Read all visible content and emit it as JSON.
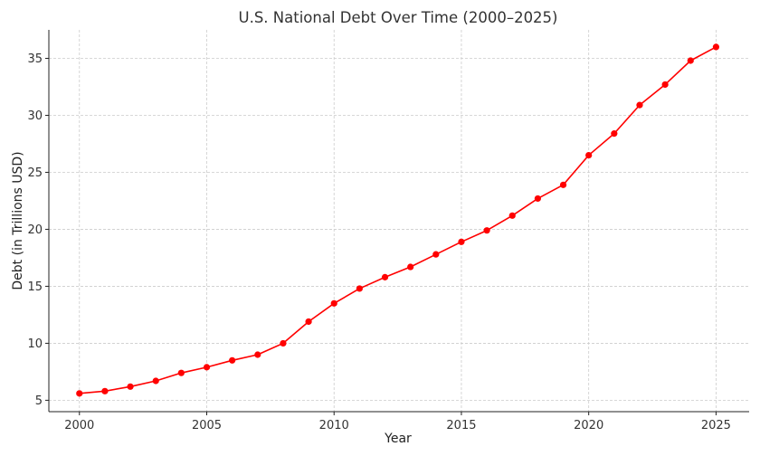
{
  "chart_data": {
    "type": "line",
    "title": "U.S. National Debt Over Time (2000–2025)",
    "xlabel": "Year",
    "ylabel": "Debt (in Trillions USD)",
    "xlim": [
      1998.8,
      2026.3
    ],
    "ylim": [
      4.0,
      37.5
    ],
    "xticks": [
      2000,
      2005,
      2010,
      2015,
      2020,
      2025
    ],
    "yticks": [
      5,
      10,
      15,
      20,
      25,
      30,
      35
    ],
    "grid": true,
    "legend": "none",
    "series": [
      {
        "color": "#ff0000",
        "marker": "circle",
        "x": [
          2000,
          2001,
          2002,
          2003,
          2004,
          2005,
          2006,
          2007,
          2008,
          2009,
          2010,
          2011,
          2012,
          2013,
          2014,
          2015,
          2016,
          2017,
          2018,
          2019,
          2020,
          2021,
          2022,
          2023,
          2024,
          2025
        ],
        "y": [
          5.6,
          5.8,
          6.2,
          6.7,
          7.4,
          7.9,
          8.5,
          9.0,
          10.0,
          11.9,
          13.5,
          14.8,
          15.8,
          16.7,
          17.8,
          18.9,
          19.9,
          21.2,
          22.7,
          23.9,
          26.5,
          28.4,
          30.9,
          32.7,
          34.8,
          36.0
        ]
      }
    ]
  }
}
